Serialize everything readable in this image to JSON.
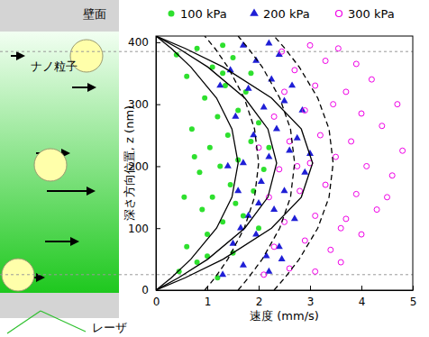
{
  "chart_data": {
    "type": "scatter",
    "x_label": "速度 (mm/s)",
    "y_label": "深さ方向位置, z (nm)",
    "annotations": [
      "壁面",
      "ナノ粒子",
      "レーザ"
    ],
    "xlim": [
      0,
      5
    ],
    "ylim": [
      0,
      410
    ],
    "xticks": [
      0,
      1,
      2,
      3,
      4,
      5
    ],
    "yticks": [
      0,
      100,
      200,
      300,
      400
    ],
    "hlines": [
      25,
      385
    ],
    "legend": "top",
    "series": [
      {
        "name": "100 kPa",
        "type": "scatter",
        "color": "#2ee02e",
        "marker": "circle",
        "x": [
          0.45,
          0.8,
          1.2,
          0.6,
          1.0,
          1.5,
          1.3,
          0.9,
          1.7,
          1.1,
          1.45,
          1.9,
          0.85,
          1.25,
          1.6,
          2.1,
          1.05,
          1.4,
          1.85,
          0.7,
          1.2,
          1.6,
          2.0,
          0.95,
          1.35,
          1.75,
          0.6,
          1.1,
          1.5,
          0.8,
          1.3,
          0.4,
          2.2,
          1.0,
          1.55,
          0.75,
          1.3,
          1.85,
          0.55,
          2.0
        ],
        "values": [
          30,
          45,
          20,
          70,
          90,
          60,
          110,
          130,
          120,
          150,
          170,
          160,
          190,
          200,
          210,
          195,
          230,
          250,
          240,
          260,
          280,
          290,
          270,
          310,
          330,
          320,
          345,
          360,
          375,
          390,
          395,
          380,
          230,
          55,
          140,
          215,
          350,
          350,
          150,
          100
        ]
      },
      {
        "name": "200 kPa",
        "type": "scatter",
        "color": "#1f1fd6",
        "marker": "triangle",
        "x": [
          1.3,
          1.7,
          2.2,
          1.5,
          1.95,
          2.4,
          1.8,
          2.3,
          2.7,
          1.6,
          2.05,
          2.5,
          2.9,
          1.7,
          2.2,
          2.6,
          1.9,
          2.35,
          2.75,
          1.55,
          2.1,
          2.5,
          1.8,
          2.25,
          2.65,
          1.45,
          1.95,
          2.4,
          1.7,
          2.2,
          2.0,
          1.4,
          3.0,
          2.45,
          1.65,
          2.85,
          2.15,
          1.25
        ],
        "values": [
          25,
          40,
          30,
          75,
          90,
          70,
          120,
          130,
          115,
          160,
          175,
          160,
          190,
          205,
          215,
          225,
          250,
          260,
          245,
          280,
          295,
          305,
          325,
          340,
          330,
          355,
          370,
          380,
          395,
          398,
          140,
          200,
          220,
          50,
          100,
          290,
          55,
          330
        ]
      },
      {
        "name": "300 kPa",
        "type": "scatter",
        "color": "#f000e6",
        "marker": "open-circle",
        "x": [
          2.1,
          2.6,
          3.1,
          3.6,
          2.3,
          2.9,
          3.4,
          4.0,
          2.5,
          3.1,
          3.7,
          4.3,
          2.2,
          2.8,
          3.3,
          3.9,
          4.6,
          2.4,
          3.0,
          3.5,
          4.1,
          4.8,
          2.6,
          3.2,
          3.8,
          4.4,
          2.3,
          2.9,
          3.45,
          4.0,
          2.5,
          3.1,
          3.7,
          4.2,
          2.7,
          3.3,
          3.9,
          2.45,
          3.0,
          3.55,
          4.5,
          2.0,
          4.7,
          3.6,
          2.75
        ],
        "values": [
          25,
          35,
          30,
          45,
          70,
          80,
          65,
          90,
          110,
          120,
          115,
          130,
          150,
          160,
          170,
          155,
          185,
          195,
          205,
          215,
          200,
          225,
          240,
          250,
          240,
          265,
          280,
          290,
          300,
          285,
          320,
          330,
          320,
          340,
          355,
          370,
          365,
          385,
          395,
          390,
          150,
          230,
          300,
          100,
          200
        ]
      },
      {
        "type": "line",
        "line_style": "solid",
        "color": "#000000",
        "x": [
          0,
          0.3,
          0.68,
          1.18,
          1.48,
          1.6,
          1.48,
          1.18,
          0.68,
          0.3,
          0
        ],
        "values": [
          0,
          20,
          50,
          100,
          150,
          205,
          260,
          310,
          360,
          390,
          410
        ]
      },
      {
        "type": "line",
        "line_style": "solid",
        "color": "#000000",
        "x": [
          0,
          0.44,
          1.01,
          1.73,
          2.18,
          2.35,
          2.18,
          1.73,
          1.01,
          0.44,
          0
        ],
        "values": [
          0,
          20,
          50,
          100,
          150,
          205,
          260,
          310,
          360,
          390,
          410
        ]
      },
      {
        "type": "line",
        "line_style": "solid",
        "color": "#000000",
        "x": [
          0,
          0.57,
          1.31,
          2.25,
          2.83,
          3.05,
          2.83,
          2.25,
          1.31,
          0.57,
          0
        ],
        "values": [
          0,
          20,
          50,
          100,
          150,
          205,
          260,
          310,
          360,
          390,
          410
        ]
      },
      {
        "type": "line",
        "line_style": "dashed",
        "color": "#000000",
        "x": [
          0.95,
          1.15,
          1.4,
          1.72,
          1.92,
          2.0,
          1.92,
          1.72,
          1.4,
          1.15,
          0.95
        ],
        "values": [
          0,
          20,
          50,
          100,
          150,
          205,
          260,
          310,
          360,
          390,
          410
        ]
      },
      {
        "type": "line",
        "line_style": "dashed",
        "color": "#000000",
        "x": [
          1.6,
          1.8,
          2.07,
          2.41,
          2.62,
          2.7,
          2.62,
          2.41,
          2.07,
          1.8,
          1.6
        ],
        "values": [
          0,
          20,
          50,
          100,
          150,
          205,
          260,
          310,
          360,
          390,
          410
        ]
      },
      {
        "type": "line",
        "line_style": "dashed",
        "color": "#000000",
        "x": [
          2.3,
          2.51,
          2.79,
          3.15,
          3.37,
          3.45,
          3.37,
          3.15,
          2.79,
          2.51,
          2.3
        ],
        "values": [
          0,
          20,
          50,
          100,
          150,
          205,
          260,
          310,
          360,
          390,
          410
        ]
      }
    ]
  }
}
